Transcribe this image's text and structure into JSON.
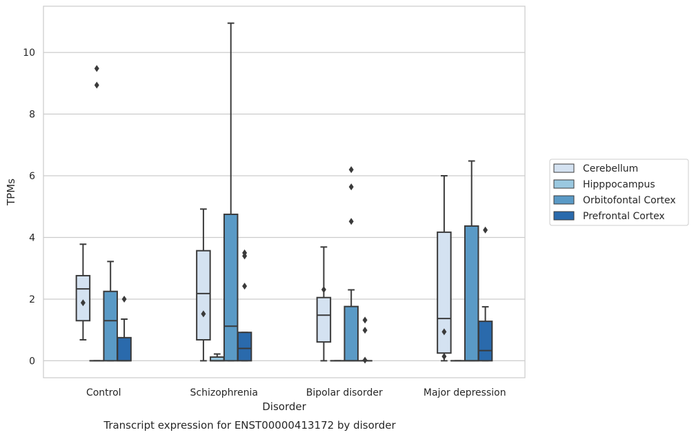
{
  "chart_data": {
    "type": "box",
    "caption": "Transcript expression for ENST00000413172 by disorder",
    "xlabel": "Disorder",
    "ylabel": "TPMs",
    "ylim": [
      -0.55,
      11.5
    ],
    "yticks": [
      0,
      2,
      4,
      6,
      8,
      10
    ],
    "grid": "horizontal",
    "legend_position": "right",
    "categories": [
      "Control",
      "Schizophrenia",
      "Bipolar disorder",
      "Major depression"
    ],
    "series": [
      {
        "name": "Cerebellum",
        "color": "#d4e2f1",
        "boxes": [
          {
            "whislo": 0.68,
            "q1": 1.3,
            "med": 2.33,
            "q3": 2.76,
            "whishi": 3.78,
            "fliers": [
              1.88
            ]
          },
          {
            "whislo": 0.0,
            "q1": 0.68,
            "med": 2.18,
            "q3": 3.57,
            "whishi": 4.92,
            "fliers": [
              1.52
            ]
          },
          {
            "whislo": 0.0,
            "q1": 0.61,
            "med": 1.48,
            "q3": 2.05,
            "whishi": 3.69,
            "fliers": [
              2.31
            ]
          },
          {
            "whislo": 0.0,
            "q1": 0.25,
            "med": 1.37,
            "q3": 4.17,
            "whishi": 6.0,
            "fliers": [
              0.94,
              0.14
            ]
          }
        ]
      },
      {
        "name": "Hipppocampus",
        "color": "#9ac8e0",
        "boxes": [
          {
            "whislo": 0.0,
            "q1": 0.0,
            "med": 0.0,
            "q3": 0.0,
            "whishi": 0.0,
            "fliers": [
              9.48,
              8.94
            ]
          },
          {
            "whislo": 0.0,
            "q1": 0.0,
            "med": 0.0,
            "q3": 0.12,
            "whishi": 0.22,
            "fliers": []
          },
          {
            "whislo": 0.0,
            "q1": 0.0,
            "med": 0.0,
            "q3": 0.0,
            "whishi": 0.0,
            "fliers": []
          },
          {
            "whislo": 0.0,
            "q1": 0.0,
            "med": 0.0,
            "q3": 0.0,
            "whishi": 0.0,
            "fliers": []
          }
        ]
      },
      {
        "name": "Orbitofontal Cortex",
        "color": "#5a9ac6",
        "boxes": [
          {
            "whislo": 0.0,
            "q1": 0.0,
            "med": 1.3,
            "q3": 2.25,
            "whishi": 3.22,
            "fliers": []
          },
          {
            "whislo": 0.0,
            "q1": 0.0,
            "med": 1.12,
            "q3": 4.75,
            "whishi": 10.95,
            "fliers": []
          },
          {
            "whislo": 0.0,
            "q1": 0.0,
            "med": 0.0,
            "q3": 1.76,
            "whishi": 2.3,
            "fliers": [
              6.2,
              5.64,
              4.52
            ]
          },
          {
            "whislo": 0.0,
            "q1": 0.0,
            "med": 0.0,
            "q3": 4.37,
            "whishi": 6.48,
            "fliers": []
          }
        ]
      },
      {
        "name": "Prefrontal Cortex",
        "color": "#2a6aac",
        "boxes": [
          {
            "whislo": 0.0,
            "q1": 0.0,
            "med": 0.0,
            "q3": 0.75,
            "whishi": 1.35,
            "fliers": [
              2.0
            ]
          },
          {
            "whislo": 0.0,
            "q1": 0.0,
            "med": 0.4,
            "q3": 0.92,
            "whishi": 0.92,
            "fliers": [
              3.5,
              3.4,
              2.42
            ]
          },
          {
            "whislo": 0.0,
            "q1": 0.0,
            "med": 0.0,
            "q3": 0.0,
            "whishi": 0.0,
            "fliers": [
              1.32,
              0.99,
              0.02
            ]
          },
          {
            "whislo": 0.0,
            "q1": 0.0,
            "med": 0.33,
            "q3": 1.28,
            "whishi": 1.75,
            "fliers": [
              4.24
            ]
          }
        ]
      }
    ]
  }
}
